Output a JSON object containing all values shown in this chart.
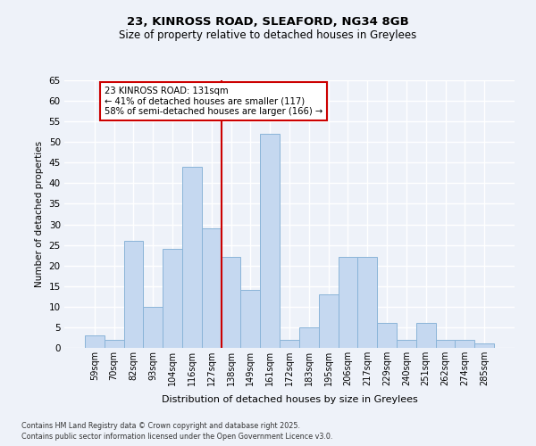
{
  "title1": "23, KINROSS ROAD, SLEAFORD, NG34 8GB",
  "title2": "Size of property relative to detached houses in Greylees",
  "xlabel": "Distribution of detached houses by size in Greylees",
  "ylabel": "Number of detached properties",
  "bins": [
    "59sqm",
    "70sqm",
    "82sqm",
    "93sqm",
    "104sqm",
    "116sqm",
    "127sqm",
    "138sqm",
    "149sqm",
    "161sqm",
    "172sqm",
    "183sqm",
    "195sqm",
    "206sqm",
    "217sqm",
    "229sqm",
    "240sqm",
    "251sqm",
    "262sqm",
    "274sqm",
    "285sqm"
  ],
  "values": [
    3,
    2,
    26,
    10,
    24,
    44,
    29,
    22,
    14,
    52,
    2,
    5,
    13,
    22,
    22,
    6,
    2,
    6,
    2,
    2,
    1
  ],
  "bar_color": "#c5d8f0",
  "bar_edge_color": "#8ab4d8",
  "vline_x_idx": 6.5,
  "annotation_text": "23 KINROSS ROAD: 131sqm\n← 41% of detached houses are smaller (117)\n58% of semi-detached houses are larger (166) →",
  "annotation_box_color": "#ffffff",
  "annotation_box_edge": "#cc0000",
  "vline_color": "#cc0000",
  "ylim": [
    0,
    65
  ],
  "yticks": [
    0,
    5,
    10,
    15,
    20,
    25,
    30,
    35,
    40,
    45,
    50,
    55,
    60,
    65
  ],
  "footer1": "Contains HM Land Registry data © Crown copyright and database right 2025.",
  "footer2": "Contains public sector information licensed under the Open Government Licence v3.0.",
  "bg_color": "#eef2f9",
  "plot_bg_color": "#eef2f9",
  "title1_fontsize": 9.5,
  "title2_fontsize": 8.5
}
